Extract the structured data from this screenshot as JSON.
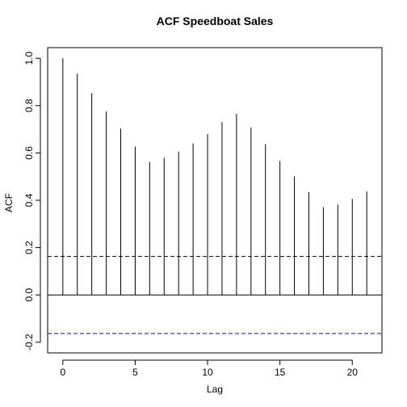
{
  "chart_data": {
    "type": "bar",
    "title": "ACF Speedboat Sales",
    "xlabel": "Lag",
    "ylabel": "ACF",
    "x": [
      0,
      1,
      2,
      3,
      4,
      5,
      6,
      7,
      8,
      9,
      10,
      11,
      12,
      13,
      14,
      15,
      16,
      17,
      18,
      19,
      20,
      21
    ],
    "values": [
      1.0,
      0.935,
      0.853,
      0.775,
      0.703,
      0.627,
      0.562,
      0.58,
      0.606,
      0.64,
      0.68,
      0.73,
      0.765,
      0.708,
      0.637,
      0.566,
      0.501,
      0.434,
      0.371,
      0.382,
      0.406,
      0.437
    ],
    "xlim": [
      -1.05,
      22.05
    ],
    "ylim": [
      -0.245,
      1.045
    ],
    "xticks": [
      0,
      5,
      10,
      15,
      20
    ],
    "xtick_labels": [
      "0",
      "5",
      "10",
      "15",
      "20"
    ],
    "yticks": [
      -0.2,
      0.0,
      0.2,
      0.4,
      0.6,
      0.8,
      1.0
    ],
    "ytick_labels": [
      "-0.2",
      "0.0",
      "0.2",
      "0.4",
      "0.6",
      "0.8",
      "1.0"
    ],
    "zero_line": 0,
    "confidence_bounds": [
      0.163,
      -0.163
    ],
    "confidence_color": "#0000cc",
    "bar_color": "#000000",
    "grid": false
  }
}
